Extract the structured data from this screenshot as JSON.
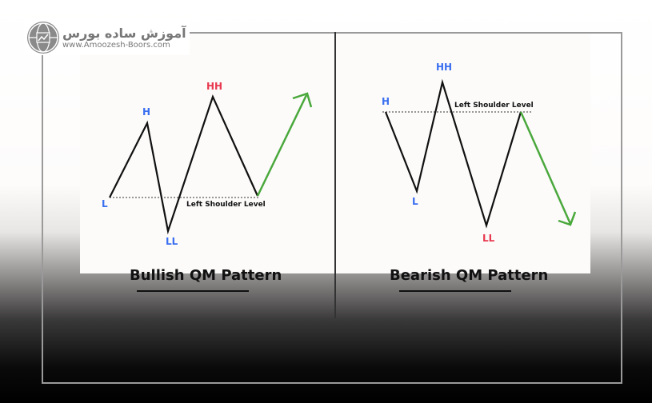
{
  "logo": {
    "name_fa": "آموزش ساده بورس",
    "url": "www.Amoozesh-Boors.com"
  },
  "colors": {
    "blue": "#3a6ff0",
    "red": "#e8384f",
    "green": "#4aa83c",
    "line": "#111111"
  },
  "bullish": {
    "title": "Bullish QM Pattern",
    "labels": {
      "l": "L",
      "h": "H",
      "ll": "LL",
      "hh": "HH"
    },
    "level_label": "Left Shoulder Level"
  },
  "bearish": {
    "title": "Bearish QM Pattern",
    "labels": {
      "h": "H",
      "l": "L",
      "hh": "HH",
      "ll": "LL"
    },
    "level_label": "Left Shoulder Level"
  }
}
